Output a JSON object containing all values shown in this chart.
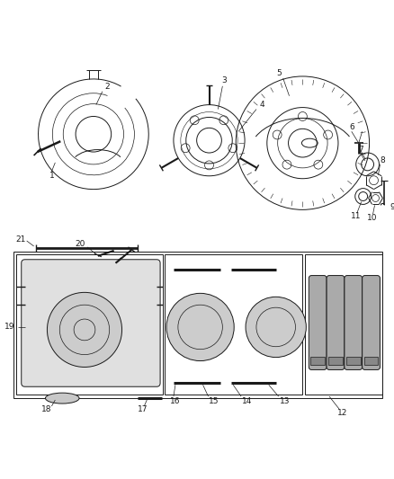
{
  "bg_color": "#ffffff",
  "line_color": "#1a1a1a",
  "figsize": [
    4.38,
    5.33
  ],
  "dpi": 100,
  "label_fontsize": 6.5
}
